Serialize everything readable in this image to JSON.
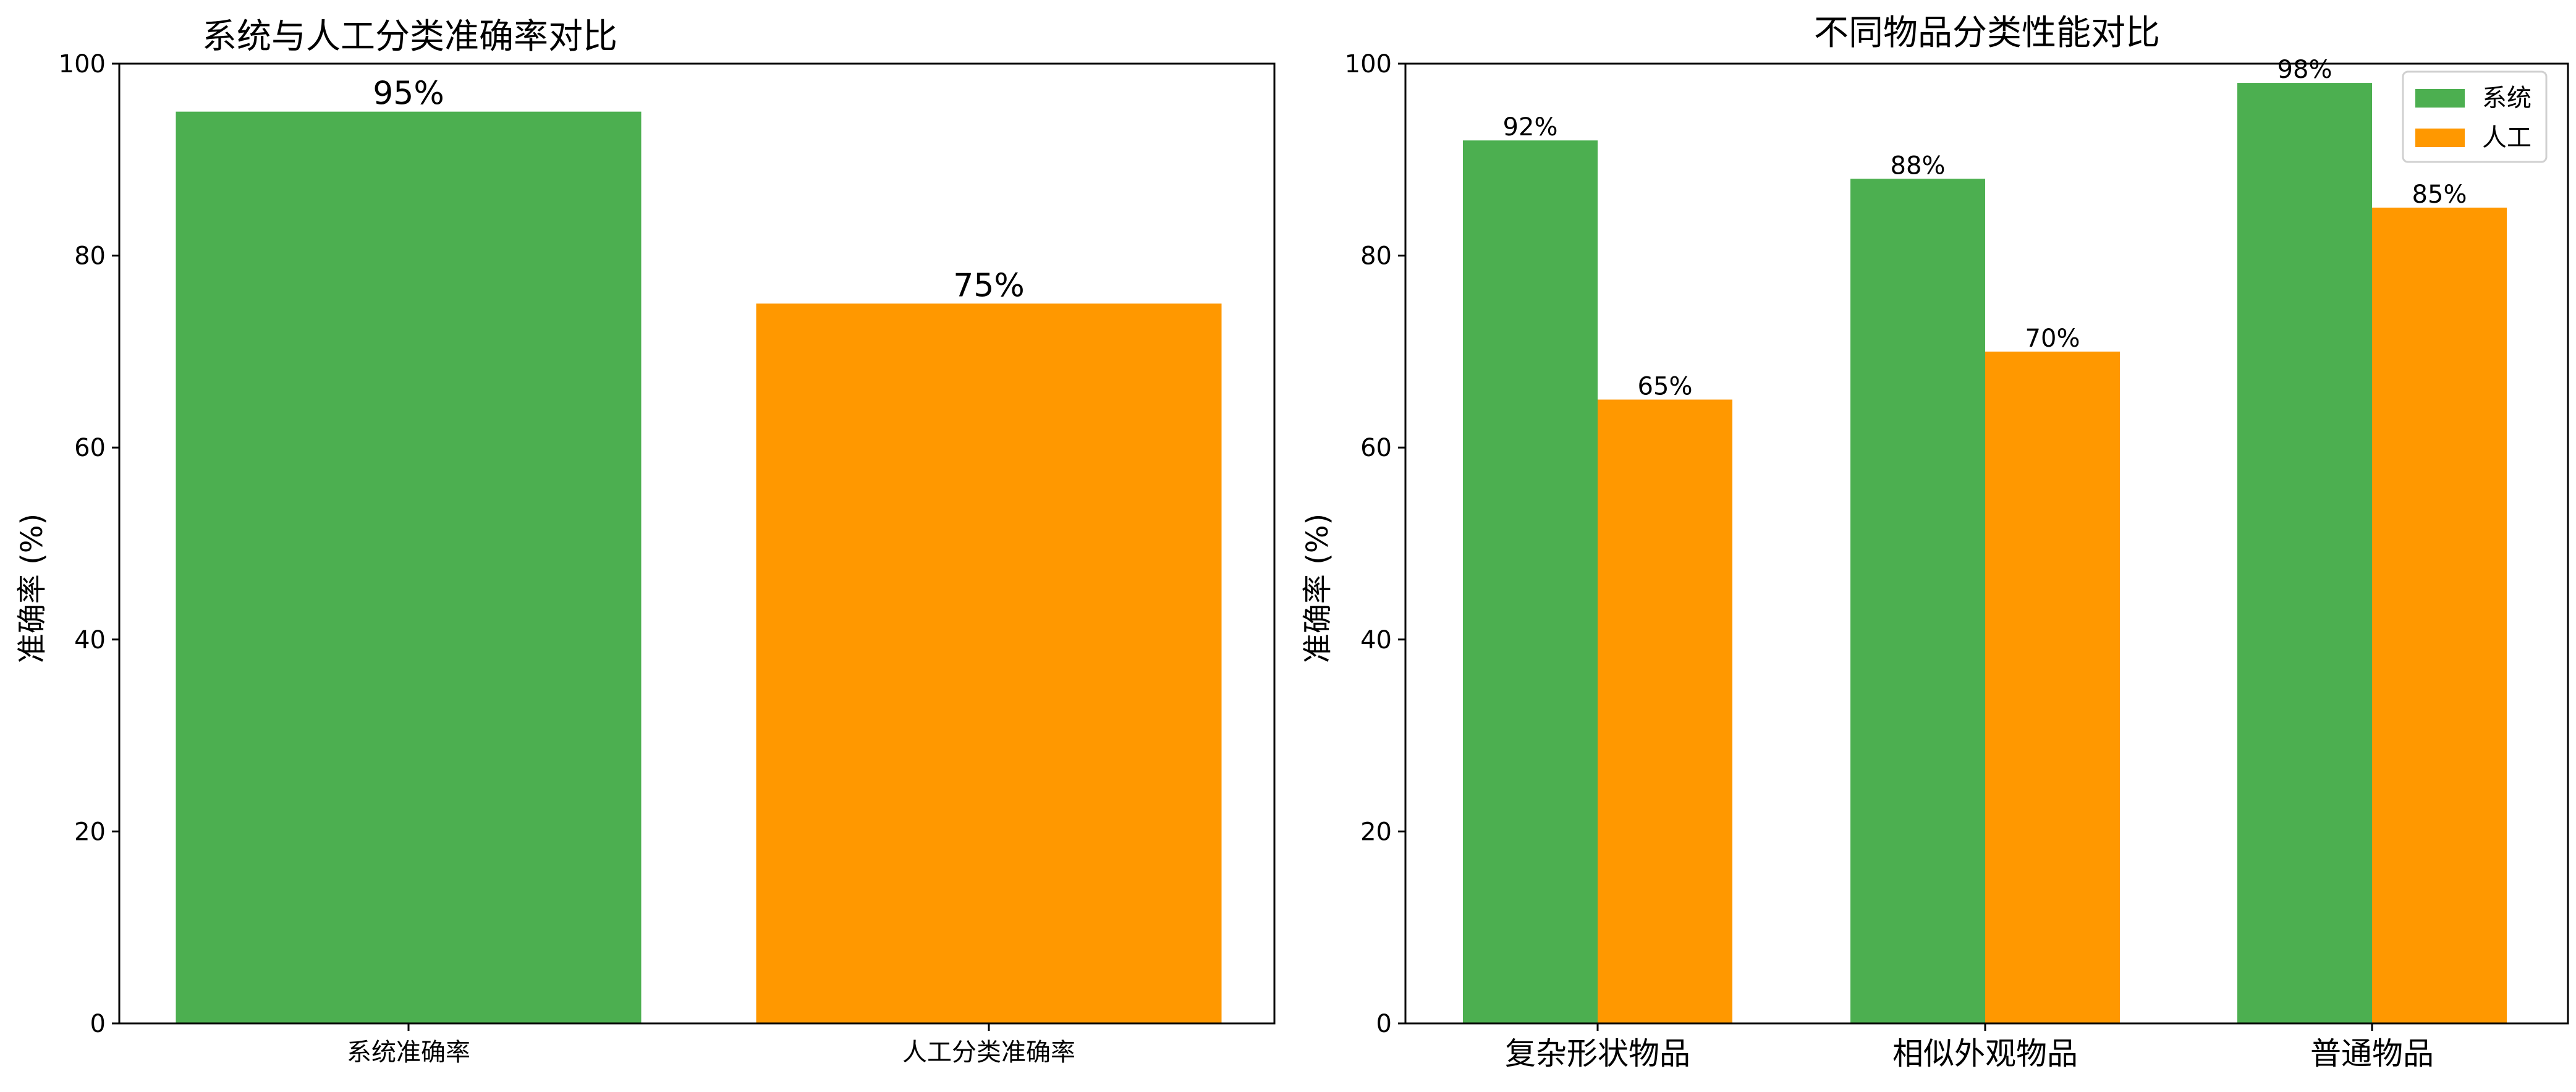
{
  "colors": {
    "system": "#4caf50",
    "manual": "#ff9800",
    "axis": "#000000"
  },
  "chart_data": [
    {
      "type": "bar",
      "title": "系统与人工分类准确率对比",
      "ylabel": "准确率 (%)",
      "xlabel": "",
      "ylim": [
        0,
        100
      ],
      "yticks": [
        0,
        20,
        40,
        60,
        80,
        100
      ],
      "categories": [
        "系统准确率",
        "人工分类准确率"
      ],
      "values": [
        95,
        75
      ],
      "value_labels": [
        "95%",
        "75%"
      ],
      "bar_colors": [
        "#4caf50",
        "#ff9800"
      ],
      "grid": false
    },
    {
      "type": "bar",
      "title": "不同物品分类性能对比",
      "ylabel": "准确率 (%)",
      "xlabel": "",
      "ylim": [
        0,
        100
      ],
      "yticks": [
        0,
        20,
        40,
        60,
        80,
        100
      ],
      "categories": [
        "复杂形状物品",
        "相似外观物品",
        "普通物品"
      ],
      "series": [
        {
          "name": "系统",
          "values": [
            92,
            88,
            98
          ],
          "value_labels": [
            "92%",
            "88%",
            "98%"
          ],
          "color": "#4caf50"
        },
        {
          "name": "人工",
          "values": [
            65,
            70,
            85
          ],
          "value_labels": [
            "65%",
            "70%",
            "85%"
          ],
          "color": "#ff9800"
        }
      ],
      "legend": "top-right",
      "grid": false
    }
  ]
}
